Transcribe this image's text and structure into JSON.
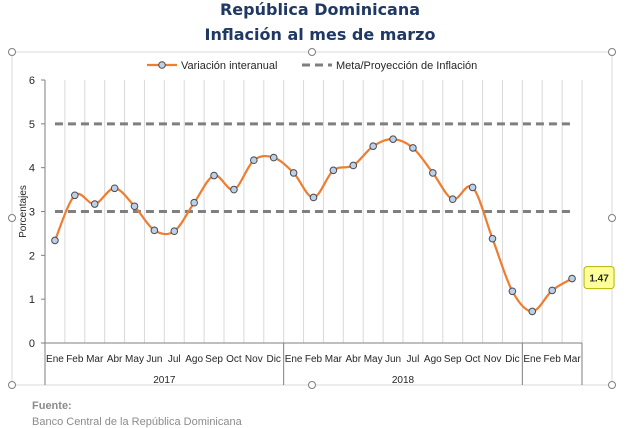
{
  "title": "República Dominicana",
  "subtitle": "Inflación al mes de marzo",
  "source_label": "Fuente:",
  "source_text": "Banco Central de la República Dominicana",
  "colors": {
    "title": "#1f3864",
    "line": "#ed7d31",
    "marker_fill": "#bcd0ea",
    "marker_stroke": "#4a4a4a",
    "target": "#7f7f7f",
    "callout_fill": "#ffff99",
    "callout_stroke": "#b3b300"
  },
  "chart_data": {
    "type": "line",
    "ylabel": "Porcentajes",
    "ylim": [
      0,
      6
    ],
    "yticks": [
      0,
      1,
      2,
      3,
      4,
      5,
      6
    ],
    "grid": "vertical",
    "legend_position": "top",
    "categories": [
      "Ene",
      "Feb",
      "Mar",
      "Abr",
      "May",
      "Jun",
      "Jul",
      "Ago",
      "Sep",
      "Oct",
      "Nov",
      "Dic",
      "Ene",
      "Feb",
      "Mar",
      "Abr",
      "May",
      "Jun",
      "Jul",
      "Ago",
      "Sep",
      "Oct",
      "Nov",
      "Dic",
      "Ene",
      "Feb",
      "Mar"
    ],
    "groups": [
      {
        "label": "2017",
        "count": 12
      },
      {
        "label": "2018",
        "count": 12
      },
      {
        "label": "",
        "count": 3
      }
    ],
    "series": [
      {
        "name": "Variación interanual",
        "style": "smooth-line-markers",
        "values": [
          2.34,
          3.37,
          3.17,
          3.53,
          3.12,
          2.57,
          2.55,
          3.2,
          3.82,
          3.5,
          4.17,
          4.23,
          3.88,
          3.32,
          3.94,
          4.05,
          4.49,
          4.65,
          4.45,
          3.88,
          3.28,
          3.55,
          2.38,
          1.18,
          0.72,
          1.2,
          1.47
        ]
      },
      {
        "name": "Meta/Proyección de Inflación",
        "style": "dashed",
        "upper": 5,
        "lower": 3
      }
    ],
    "annotations": [
      {
        "index": 26,
        "text": "1.47"
      }
    ]
  }
}
